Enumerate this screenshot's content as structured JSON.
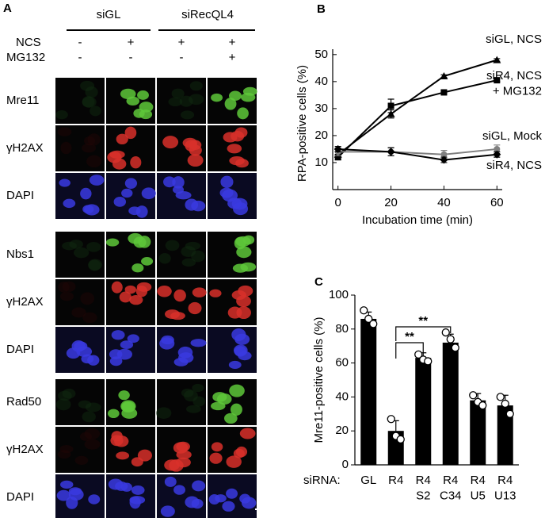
{
  "panel_a": {
    "label": "A",
    "groups": [
      "siGL",
      "siRecQL4"
    ],
    "treatments": [
      {
        "name": "NCS",
        "signs": [
          "-",
          "+",
          "+",
          "+"
        ]
      },
      {
        "name": "MG132",
        "signs": [
          "-",
          "-",
          "-",
          "+"
        ]
      }
    ],
    "blocks": [
      {
        "rows": [
          "Mre11",
          "γH2AX",
          "DAPI"
        ]
      },
      {
        "rows": [
          "Nbs1",
          "γH2AX",
          "DAPI"
        ]
      },
      {
        "rows": [
          "Rad50",
          "γH2AX",
          "DAPI"
        ]
      }
    ]
  },
  "chart_data": [
    {
      "panel_label": "B",
      "type": "line",
      "x_label": "Incubation time (min)",
      "y_label": "RPA-positive cells (%)",
      "x": [
        0,
        20,
        40,
        60
      ],
      "xlim": [
        -2,
        62
      ],
      "xticks": [
        0,
        20,
        40,
        60
      ],
      "ylim": [
        0,
        52
      ],
      "yticks": [
        10,
        20,
        30,
        40,
        50
      ],
      "series": [
        {
          "name": "siGL, NCS",
          "color": "#000000",
          "marker": "triangle",
          "values": [
            13,
            28,
            42,
            48
          ],
          "errors": [
            1,
            1.5,
            0.5,
            0.5
          ]
        },
        {
          "name": "siR4, NCS\n+ MG132",
          "color": "#000000",
          "marker": "square",
          "values": [
            12,
            31,
            36,
            40.5
          ],
          "errors": [
            1,
            2.5,
            0.5,
            0.5
          ]
        },
        {
          "name": "siGL, Mock",
          "color": "#808080",
          "marker": "circle",
          "values": [
            14,
            14,
            13,
            15
          ],
          "errors": [
            1.5,
            1.5,
            1.5,
            1.5
          ]
        },
        {
          "name": "siR4, NCS",
          "color": "#000000",
          "marker": "diamond",
          "values": [
            15,
            14,
            11,
            13
          ],
          "errors": [
            1,
            1.5,
            1,
            1
          ]
        }
      ]
    },
    {
      "panel_label": "C",
      "type": "bar",
      "x_label": "siRNA:",
      "y_label": "Mre11-positive cells (%)",
      "categories": [
        "GL",
        "R4",
        "R4\nS2",
        "R4\nC34",
        "R4\nU5",
        "R4\nU13"
      ],
      "values": [
        86,
        20,
        63,
        72,
        38,
        35
      ],
      "errors": [
        4,
        6,
        3,
        5,
        4,
        6
      ],
      "points": [
        [
          91,
          86,
          83
        ],
        [
          27,
          17,
          15
        ],
        [
          65,
          62,
          61
        ],
        [
          78,
          74,
          69
        ],
        [
          41,
          37,
          35
        ],
        [
          40,
          36,
          30
        ]
      ],
      "color": "#000000",
      "ylim": [
        0,
        100
      ],
      "yticks": [
        0,
        20,
        40,
        60,
        80,
        100
      ],
      "annotations": [
        "**",
        "**"
      ]
    }
  ]
}
